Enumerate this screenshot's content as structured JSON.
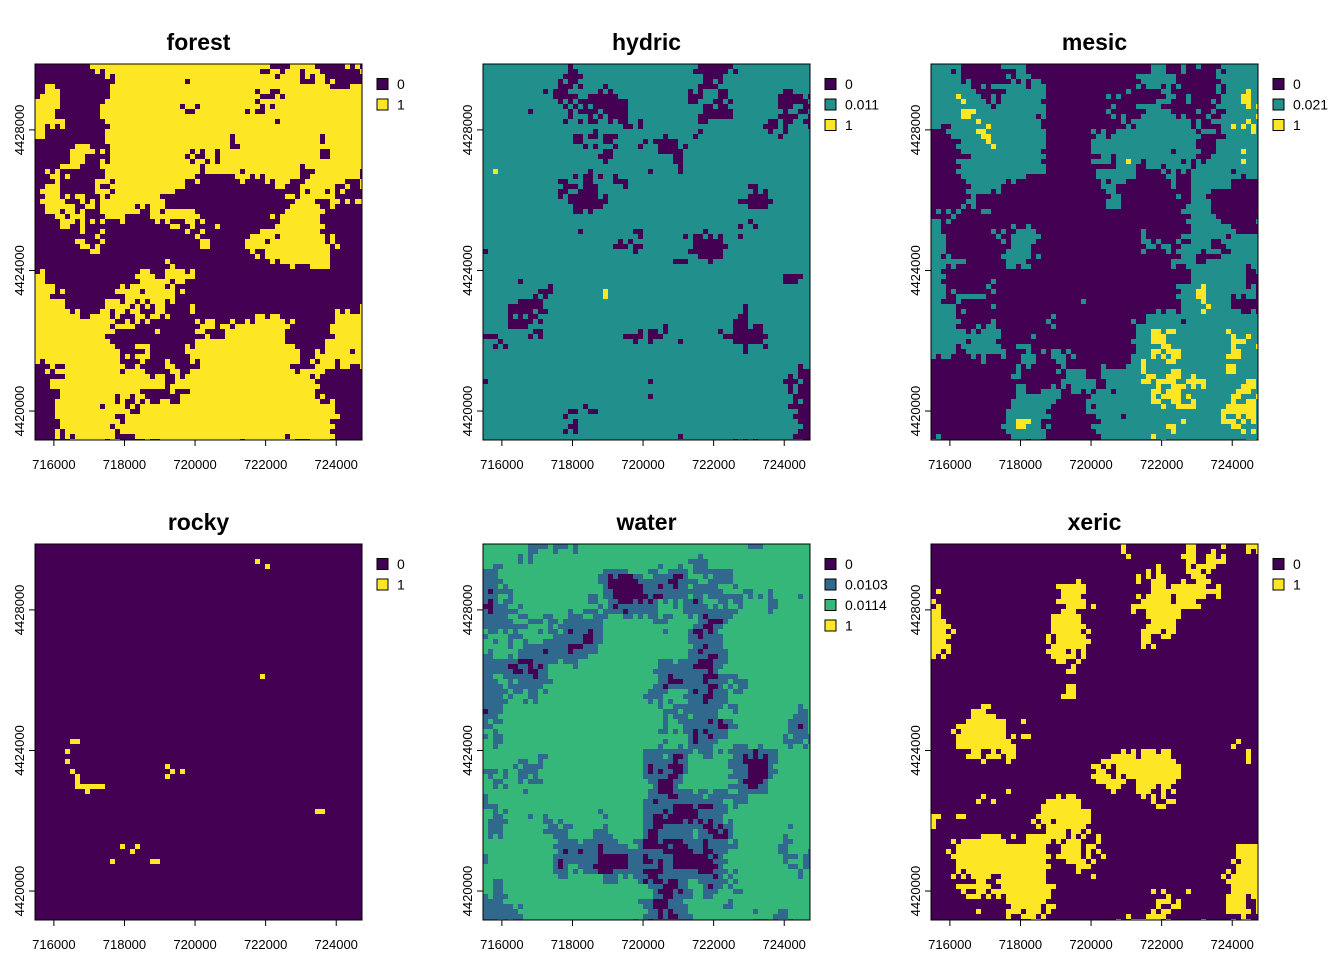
{
  "chart_data": [
    {
      "type": "raster",
      "title": "forest",
      "categories": [
        0,
        1
      ],
      "colors": [
        "#440154",
        "#FDE725"
      ],
      "xlim": [
        715465,
        724730
      ],
      "xticks": [
        716000,
        718000,
        720000,
        722000,
        724000
      ],
      "ylim": [
        4419176,
        4429875
      ],
      "yticks": [
        4420000,
        4424000,
        4428000
      ]
    },
    {
      "type": "raster",
      "title": "hydric",
      "categories": [
        0,
        0.011,
        1
      ],
      "colors": [
        "#440154",
        "#21908C",
        "#FDE725"
      ],
      "xlim": [
        715465,
        724730
      ],
      "xticks": [
        716000,
        718000,
        720000,
        722000,
        724000
      ],
      "ylim": [
        4419176,
        4429875
      ],
      "yticks": [
        4420000,
        4424000,
        4428000
      ]
    },
    {
      "type": "raster",
      "title": "mesic",
      "categories": [
        0,
        0.021,
        1
      ],
      "colors": [
        "#440154",
        "#21908C",
        "#FDE725"
      ],
      "xlim": [
        715465,
        724730
      ],
      "xticks": [
        716000,
        718000,
        720000,
        722000,
        724000
      ],
      "ylim": [
        4419176,
        4429875
      ],
      "yticks": [
        4420000,
        4424000,
        4428000
      ]
    },
    {
      "type": "raster",
      "title": "rocky",
      "categories": [
        0,
        1
      ],
      "colors": [
        "#440154",
        "#FDE725"
      ],
      "xlim": [
        715465,
        724730
      ],
      "xticks": [
        716000,
        718000,
        720000,
        722000,
        724000
      ],
      "ylim": [
        4419176,
        4429875
      ],
      "yticks": [
        4420000,
        4424000,
        4428000
      ]
    },
    {
      "type": "raster",
      "title": "water",
      "categories": [
        0,
        0.0103,
        0.0114,
        1
      ],
      "colors": [
        "#440154",
        "#31688E",
        "#35B779",
        "#FDE725"
      ],
      "xlim": [
        715465,
        724730
      ],
      "xticks": [
        716000,
        718000,
        720000,
        722000,
        724000
      ],
      "ylim": [
        4419176,
        4429875
      ],
      "yticks": [
        4420000,
        4424000,
        4428000
      ]
    },
    {
      "type": "raster",
      "title": "xeric",
      "categories": [
        0,
        1
      ],
      "colors": [
        "#440154",
        "#FDE725"
      ],
      "xlim": [
        715465,
        724730
      ],
      "xticks": [
        716000,
        718000,
        720000,
        722000,
        724000
      ],
      "ylim": [
        4419176,
        4429875
      ],
      "yticks": [
        4420000,
        4424000,
        4428000
      ]
    }
  ]
}
